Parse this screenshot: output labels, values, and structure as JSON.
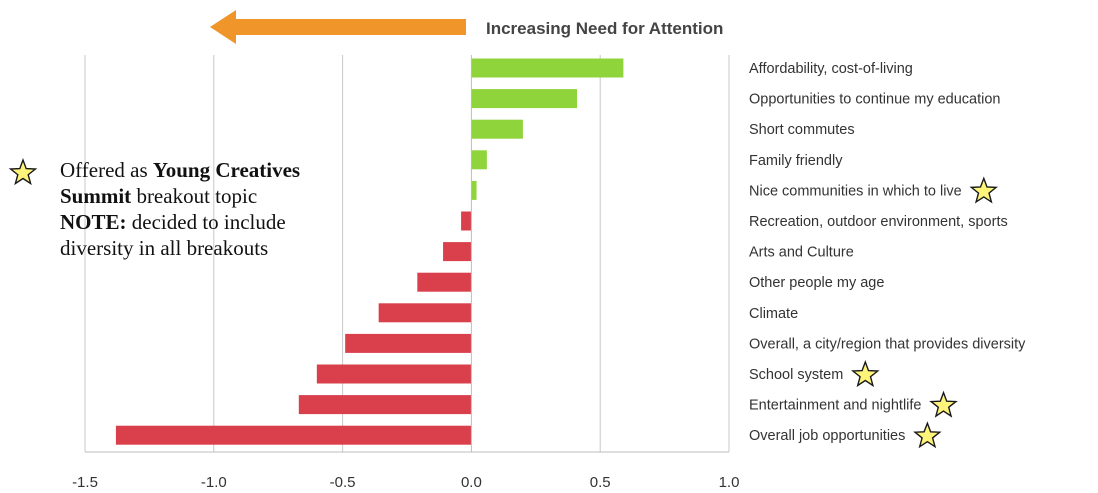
{
  "header": {
    "arrow_label": "Increasing Need for Attention"
  },
  "note": {
    "line1_prefix": "Offered as ",
    "line1_bold": "Young Creatives",
    "line2_bold": "Summit",
    "line2_rest": " breakout topic",
    "line3_bold": "NOTE:",
    "line3_rest": " decided to include",
    "line4": "diversity in all breakouts"
  },
  "colors": {
    "positive": "#8fd43a",
    "negative": "#d9404c",
    "arrow": "#f0952a",
    "star_fill": "#fff47a",
    "star_stroke": "#1a1a1a",
    "grid": "#c8c8c8",
    "text": "#333333"
  },
  "chart_data": {
    "type": "bar",
    "orientation": "horizontal",
    "categories": [
      "Affordability, cost-of-living",
      "Opportunities to continue my education",
      "Short commutes",
      "Family friendly",
      "Nice communities in which to live",
      "Recreation, outdoor environment, sports",
      "Arts and Culture",
      "Other people my age",
      "Climate",
      "Overall, a city/region that provides diversity",
      "School system",
      "Entertainment and nightlife",
      "Overall job opportunities"
    ],
    "values": [
      0.59,
      0.41,
      0.2,
      0.06,
      0.02,
      -0.04,
      -0.11,
      -0.21,
      -0.36,
      -0.49,
      -0.6,
      -0.67,
      -1.38
    ],
    "starred": [
      false,
      false,
      false,
      false,
      true,
      false,
      false,
      false,
      false,
      false,
      true,
      true,
      true
    ],
    "xlim": [
      -1.5,
      1.0
    ],
    "xticks": [
      -1.5,
      -1.0,
      -0.5,
      0.0,
      0.5,
      1.0
    ],
    "xtick_labels": [
      "-1.5",
      "-1.0",
      "-0.5",
      "0.0",
      "0.5",
      "1.0"
    ],
    "grid": "vertical",
    "title": "",
    "xlabel": "",
    "ylabel": ""
  }
}
